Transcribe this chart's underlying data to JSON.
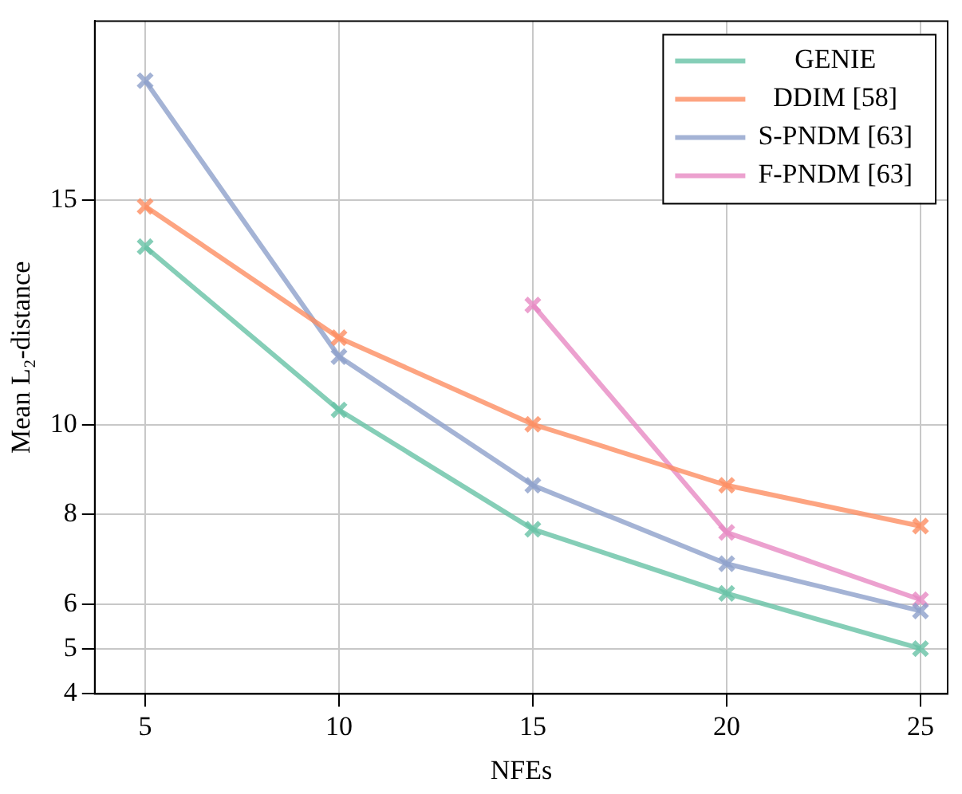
{
  "chart_data": {
    "type": "line",
    "xlabel": "NFEs",
    "ylabel": "Mean L₂-distance",
    "x": [
      5,
      10,
      15,
      20,
      25
    ],
    "series": [
      {
        "name": "GENIE",
        "color": "#66c2a5",
        "values": [
          13.97,
          10.33,
          7.67,
          6.24,
          5.01
        ]
      },
      {
        "name": "DDIM [58]",
        "color": "#fc8d62",
        "values": [
          14.87,
          11.94,
          10.01,
          8.65,
          7.74
        ]
      },
      {
        "name": "S-PNDM [63]",
        "color": "#8da0cb",
        "values": [
          17.67,
          11.52,
          8.65,
          6.9,
          5.85
        ]
      },
      {
        "name": "F-PNDM [63]",
        "color": "#e78ac3",
        "values": [
          null,
          null,
          12.67,
          7.6,
          6.1
        ]
      }
    ],
    "xlim": [
      3.7,
      25.7
    ],
    "xticks": [
      5,
      10,
      15,
      20,
      25
    ],
    "ylim": [
      4,
      19
    ],
    "yticks": [
      4,
      5,
      6,
      8,
      10,
      15
    ],
    "grid": true,
    "legend": "top right",
    "marker": "cross",
    "line_style": "solid"
  }
}
